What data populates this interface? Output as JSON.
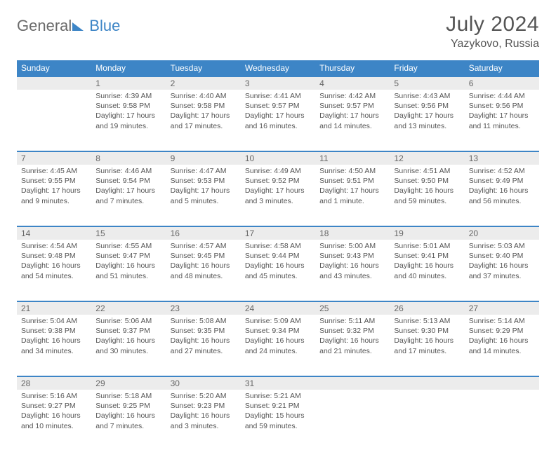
{
  "brand": {
    "a": "General",
    "b": "Blue"
  },
  "title": "July 2024",
  "location": "Yazykovo, Russia",
  "colors": {
    "header_bg": "#3d85c6",
    "header_text": "#ffffff",
    "daynum_bg": "#ececec",
    "text": "#555555",
    "rule": "#3d85c6"
  },
  "daynames": [
    "Sunday",
    "Monday",
    "Tuesday",
    "Wednesday",
    "Thursday",
    "Friday",
    "Saturday"
  ],
  "weeks": [
    [
      null,
      {
        "n": "1",
        "sr": "4:39 AM",
        "ss": "9:58 PM",
        "dl": "17 hours and 19 minutes."
      },
      {
        "n": "2",
        "sr": "4:40 AM",
        "ss": "9:58 PM",
        "dl": "17 hours and 17 minutes."
      },
      {
        "n": "3",
        "sr": "4:41 AM",
        "ss": "9:57 PM",
        "dl": "17 hours and 16 minutes."
      },
      {
        "n": "4",
        "sr": "4:42 AM",
        "ss": "9:57 PM",
        "dl": "17 hours and 14 minutes."
      },
      {
        "n": "5",
        "sr": "4:43 AM",
        "ss": "9:56 PM",
        "dl": "17 hours and 13 minutes."
      },
      {
        "n": "6",
        "sr": "4:44 AM",
        "ss": "9:56 PM",
        "dl": "17 hours and 11 minutes."
      }
    ],
    [
      {
        "n": "7",
        "sr": "4:45 AM",
        "ss": "9:55 PM",
        "dl": "17 hours and 9 minutes."
      },
      {
        "n": "8",
        "sr": "4:46 AM",
        "ss": "9:54 PM",
        "dl": "17 hours and 7 minutes."
      },
      {
        "n": "9",
        "sr": "4:47 AM",
        "ss": "9:53 PM",
        "dl": "17 hours and 5 minutes."
      },
      {
        "n": "10",
        "sr": "4:49 AM",
        "ss": "9:52 PM",
        "dl": "17 hours and 3 minutes."
      },
      {
        "n": "11",
        "sr": "4:50 AM",
        "ss": "9:51 PM",
        "dl": "17 hours and 1 minute."
      },
      {
        "n": "12",
        "sr": "4:51 AM",
        "ss": "9:50 PM",
        "dl": "16 hours and 59 minutes."
      },
      {
        "n": "13",
        "sr": "4:52 AM",
        "ss": "9:49 PM",
        "dl": "16 hours and 56 minutes."
      }
    ],
    [
      {
        "n": "14",
        "sr": "4:54 AM",
        "ss": "9:48 PM",
        "dl": "16 hours and 54 minutes."
      },
      {
        "n": "15",
        "sr": "4:55 AM",
        "ss": "9:47 PM",
        "dl": "16 hours and 51 minutes."
      },
      {
        "n": "16",
        "sr": "4:57 AM",
        "ss": "9:45 PM",
        "dl": "16 hours and 48 minutes."
      },
      {
        "n": "17",
        "sr": "4:58 AM",
        "ss": "9:44 PM",
        "dl": "16 hours and 45 minutes."
      },
      {
        "n": "18",
        "sr": "5:00 AM",
        "ss": "9:43 PM",
        "dl": "16 hours and 43 minutes."
      },
      {
        "n": "19",
        "sr": "5:01 AM",
        "ss": "9:41 PM",
        "dl": "16 hours and 40 minutes."
      },
      {
        "n": "20",
        "sr": "5:03 AM",
        "ss": "9:40 PM",
        "dl": "16 hours and 37 minutes."
      }
    ],
    [
      {
        "n": "21",
        "sr": "5:04 AM",
        "ss": "9:38 PM",
        "dl": "16 hours and 34 minutes."
      },
      {
        "n": "22",
        "sr": "5:06 AM",
        "ss": "9:37 PM",
        "dl": "16 hours and 30 minutes."
      },
      {
        "n": "23",
        "sr": "5:08 AM",
        "ss": "9:35 PM",
        "dl": "16 hours and 27 minutes."
      },
      {
        "n": "24",
        "sr": "5:09 AM",
        "ss": "9:34 PM",
        "dl": "16 hours and 24 minutes."
      },
      {
        "n": "25",
        "sr": "5:11 AM",
        "ss": "9:32 PM",
        "dl": "16 hours and 21 minutes."
      },
      {
        "n": "26",
        "sr": "5:13 AM",
        "ss": "9:30 PM",
        "dl": "16 hours and 17 minutes."
      },
      {
        "n": "27",
        "sr": "5:14 AM",
        "ss": "9:29 PM",
        "dl": "16 hours and 14 minutes."
      }
    ],
    [
      {
        "n": "28",
        "sr": "5:16 AM",
        "ss": "9:27 PM",
        "dl": "16 hours and 10 minutes."
      },
      {
        "n": "29",
        "sr": "5:18 AM",
        "ss": "9:25 PM",
        "dl": "16 hours and 7 minutes."
      },
      {
        "n": "30",
        "sr": "5:20 AM",
        "ss": "9:23 PM",
        "dl": "16 hours and 3 minutes."
      },
      {
        "n": "31",
        "sr": "5:21 AM",
        "ss": "9:21 PM",
        "dl": "15 hours and 59 minutes."
      },
      null,
      null,
      null
    ]
  ],
  "labels": {
    "sunrise": "Sunrise:",
    "sunset": "Sunset:",
    "daylight": "Daylight:"
  }
}
